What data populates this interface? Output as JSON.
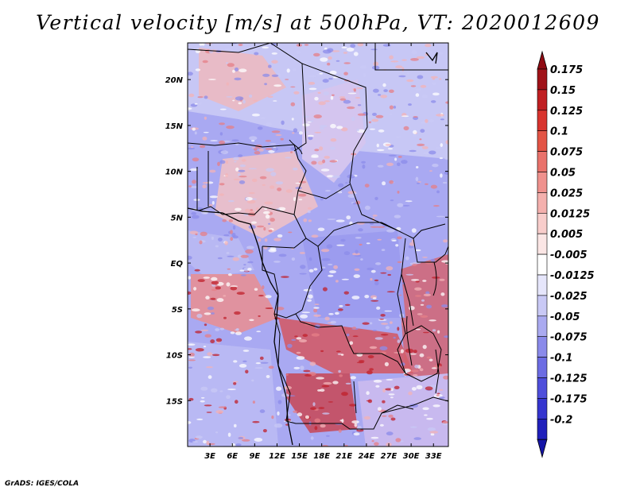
{
  "title": "Vertical velocity [m/s] at 500hPa, VT: 2020012609",
  "credit": "GrADS: IGES/COLA",
  "map": {
    "lon_range": [
      0,
      35
    ],
    "lat_range": [
      -20,
      24
    ],
    "lat_labels": [
      {
        "lat": 20,
        "label": "20N"
      },
      {
        "lat": 15,
        "label": "15N"
      },
      {
        "lat": 10,
        "label": "10N"
      },
      {
        "lat": 5,
        "label": "5N"
      },
      {
        "lat": 0,
        "label": "EQ"
      },
      {
        "lat": -5,
        "label": "5S"
      },
      {
        "lat": -10,
        "label": "10S"
      },
      {
        "lat": -15,
        "label": "15S"
      }
    ],
    "lon_labels": [
      {
        "lon": 3,
        "label": "3E"
      },
      {
        "lon": 6,
        "label": "6E"
      },
      {
        "lon": 9,
        "label": "9E"
      },
      {
        "lon": 12,
        "label": "12E"
      },
      {
        "lon": 15,
        "label": "15E"
      },
      {
        "lon": 18,
        "label": "18E"
      },
      {
        "lon": 21,
        "label": "21E"
      },
      {
        "lon": 24,
        "label": "24E"
      },
      {
        "lon": 27,
        "label": "27E"
      },
      {
        "lon": 30,
        "label": "30E"
      },
      {
        "lon": 33,
        "label": "33E"
      }
    ]
  },
  "colorbar": {
    "levels": [
      {
        "label": "0.175",
        "color": "#a01218"
      },
      {
        "label": "0.15",
        "color": "#c01f22"
      },
      {
        "label": "0.125",
        "color": "#d8342e"
      },
      {
        "label": "0.1",
        "color": "#e35445"
      },
      {
        "label": "0.075",
        "color": "#e9726b"
      },
      {
        "label": "0.05",
        "color": "#ef918d"
      },
      {
        "label": "0.025",
        "color": "#f4b0ad"
      },
      {
        "label": "0.0125",
        "color": "#f8cdcb"
      },
      {
        "label": "0.005",
        "color": "#fbe6e5"
      },
      {
        "label": "-0.005",
        "color": "#ffffff"
      },
      {
        "label": "-0.0125",
        "color": "#e6e6fb"
      },
      {
        "label": "-0.025",
        "color": "#c9c9f5"
      },
      {
        "label": "-0.05",
        "color": "#aaaaf0"
      },
      {
        "label": "-0.075",
        "color": "#8a8aea"
      },
      {
        "label": "-0.1",
        "color": "#6c6ce3"
      },
      {
        "label": "-0.125",
        "color": "#4e4edb"
      },
      {
        "label": "-0.175",
        "color": "#3535cf"
      },
      {
        "label": "-0.2",
        "color": "#2020bb"
      }
    ],
    "top_color": "#8f0a12",
    "bottom_color": "#1414a6"
  }
}
